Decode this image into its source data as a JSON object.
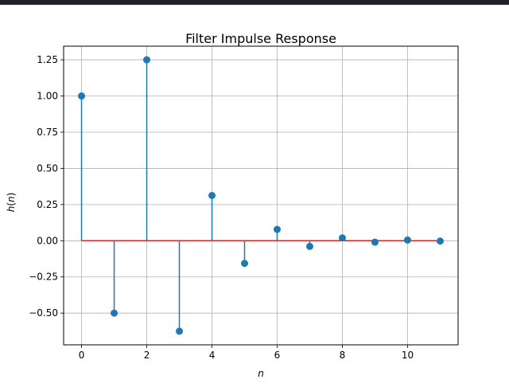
{
  "window": {
    "titlebar_color": "#1e2227"
  },
  "chart_data": {
    "type": "stem",
    "title": "Filter Impulse Response",
    "xlabel": "n",
    "ylabel": "h(n)",
    "x": [
      0,
      1,
      2,
      3,
      4,
      5,
      6,
      7,
      8,
      9,
      10,
      11
    ],
    "values": [
      1.0,
      -0.5,
      1.25,
      -0.625,
      0.3125,
      -0.15625,
      0.078125,
      -0.0390625,
      0.01953125,
      -0.009765625,
      0.0048828125,
      -0.00244140625
    ],
    "xlim": [
      -0.55,
      11.55
    ],
    "ylim": [
      -0.719,
      1.344
    ],
    "x_ticks": [
      0,
      2,
      4,
      6,
      8,
      10
    ],
    "x_tick_labels": [
      "0",
      "2",
      "4",
      "6",
      "8",
      "10"
    ],
    "y_ticks": [
      -0.5,
      -0.25,
      0.0,
      0.25,
      0.5,
      0.75,
      1.0,
      1.25
    ],
    "y_tick_labels": [
      "−0.50",
      "−0.25",
      "0.00",
      "0.25",
      "0.50",
      "0.75",
      "1.00",
      "1.25"
    ],
    "grid": true,
    "colors": {
      "stem": "#1f77b4",
      "marker": "#1f77b4",
      "baseline": "#d62728",
      "grid": "#b0b0b0"
    }
  }
}
